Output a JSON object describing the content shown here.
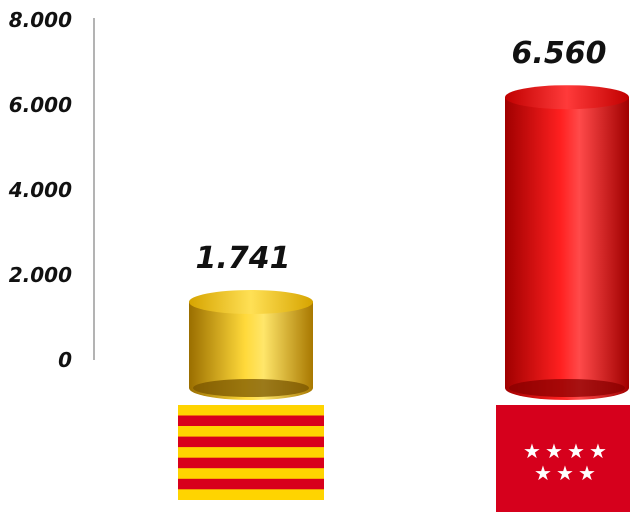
{
  "chart_data": {
    "type": "bar",
    "categories": [
      "",
      ""
    ],
    "values": [
      1741,
      6560
    ],
    "value_labels": [
      "1.741",
      "6.560"
    ],
    "ylim": [
      0,
      8000
    ],
    "yticks": [
      {
        "value": 0,
        "label": "0"
      },
      {
        "value": 2000,
        "label": "2.000"
      },
      {
        "value": 4000,
        "label": "4.000"
      },
      {
        "value": 6000,
        "label": "6.000"
      },
      {
        "value": 8000,
        "label": "8.000"
      }
    ],
    "grid": false,
    "legend": "none",
    "series_colors": [
      "#e8b800",
      "#e00000"
    ],
    "category_icons": [
      "catalonia-flag-icon",
      "madrid-community-flag-icon"
    ]
  }
}
